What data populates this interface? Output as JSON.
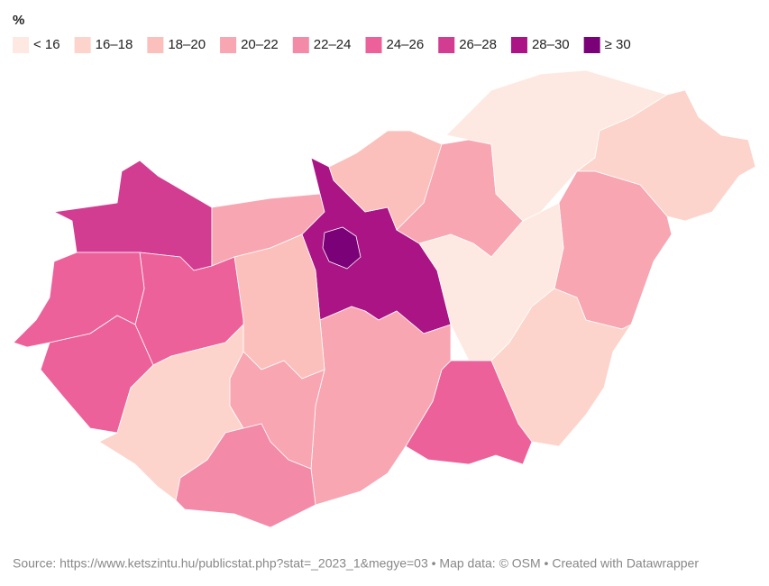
{
  "legend": {
    "title": "%",
    "items": [
      {
        "label": "< 16",
        "color": "#fde9e1"
      },
      {
        "label": "16–18",
        "color": "#fcd4cb"
      },
      {
        "label": "18–20",
        "color": "#fbc0bb"
      },
      {
        "label": "20–22",
        "color": "#f7a6b2"
      },
      {
        "label": "22–24",
        "color": "#f38aa8"
      },
      {
        "label": "24–26",
        "color": "#ec6199"
      },
      {
        "label": "26–28",
        "color": "#d23d92"
      },
      {
        "label": "28–30",
        "color": "#aa1485"
      },
      {
        "label": "≥ 30",
        "color": "#7a0177"
      }
    ]
  },
  "footer": {
    "text": "Source: https://www.ketszintu.hu/publicstat.php?stat=_2023_1&megye=03 • Map data: © OSM  • Created with Datawrapper"
  }
}
